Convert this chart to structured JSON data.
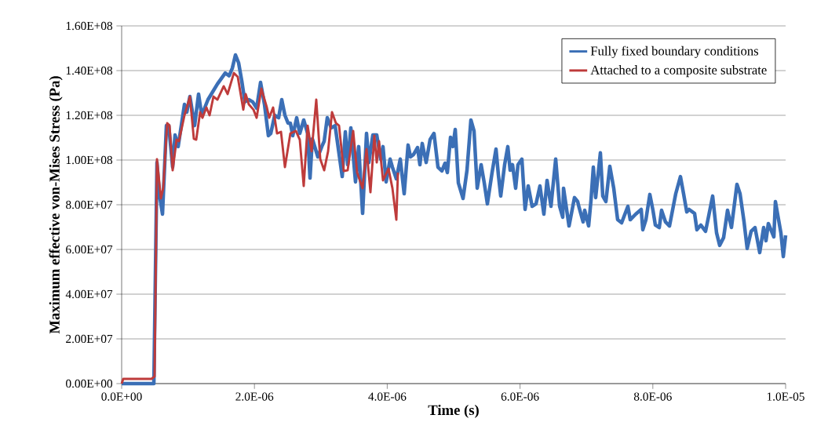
{
  "chart_data": {
    "type": "line",
    "xlabel": "Time (s)",
    "ylabel": "Maximum effective von-Mises Stress (Pa)",
    "xlim": [
      0,
      1e-05
    ],
    "ylim": [
      0,
      160000000.0
    ],
    "xticks": [
      {
        "value": 0,
        "label": "0.0E+00"
      },
      {
        "value": 2e-06,
        "label": "2.0E-06"
      },
      {
        "value": 4e-06,
        "label": "4.0E-06"
      },
      {
        "value": 6e-06,
        "label": "6.0E-06"
      },
      {
        "value": 8e-06,
        "label": "8.0E-06"
      },
      {
        "value": 1e-05,
        "label": "1.0E-05"
      }
    ],
    "yticks": [
      {
        "value": 0,
        "label": "0.00E+00"
      },
      {
        "value": 20000000.0,
        "label": "2.00E+07"
      },
      {
        "value": 40000000.0,
        "label": "4.00E+07"
      },
      {
        "value": 60000000.0,
        "label": "6.00E+07"
      },
      {
        "value": 80000000.0,
        "label": "8.00E+07"
      },
      {
        "value": 100000000.0,
        "label": "1.00E+08"
      },
      {
        "value": 120000000.0,
        "label": "1.20E+08"
      },
      {
        "value": 140000000.0,
        "label": "1.40E+08"
      },
      {
        "value": 160000000.0,
        "label": "1.60E+08"
      }
    ],
    "grid": "y",
    "legend": "top right",
    "line_style": "solid",
    "series": [
      {
        "name": "Fully fixed boundary conditions",
        "color": "#3b6fb6",
        "x": [
          0,
          4.85e-07,
          5.32e-07,
          5.67e-07,
          6.15e-07,
          6.74e-07,
          7.09e-07,
          7.68e-07,
          8.04e-07,
          8.51e-07,
          9.46e-07,
          9.81e-07,
          1.028e-06,
          1.099e-06,
          1.158e-06,
          1.206e-06,
          1.3e-06,
          1.442e-06,
          1.56e-06,
          1.619e-06,
          1.667e-06,
          1.714e-06,
          1.761e-06,
          1.809e-06,
          1.856e-06,
          1.915e-06,
          1.974e-06,
          2.033e-06,
          2.092e-06,
          2.151e-06,
          2.21e-06,
          2.246e-06,
          2.305e-06,
          2.364e-06,
          2.411e-06,
          2.459e-06,
          2.506e-06,
          2.541e-06,
          2.577e-06,
          2.636e-06,
          2.683e-06,
          2.742e-06,
          2.801e-06,
          2.837e-06,
          2.872e-06,
          2.955e-06,
          3.014e-06,
          3.05e-06,
          3.097e-06,
          3.156e-06,
          3.215e-06,
          3.322e-06,
          3.369e-06,
          3.404e-06,
          3.452e-06,
          3.522e-06,
          3.57e-06,
          3.629e-06,
          3.688e-06,
          3.723e-06,
          3.783e-06,
          3.842e-06,
          3.901e-06,
          3.936e-06,
          3.983e-06,
          4.043e-06,
          4.078e-06,
          4.137e-06,
          4.196e-06,
          4.255e-06,
          4.314e-06,
          4.35e-06,
          4.397e-06,
          4.456e-06,
          4.492e-06,
          4.527e-06,
          4.586e-06,
          4.645e-06,
          4.704e-06,
          4.764e-06,
          4.823e-06,
          4.87e-06,
          4.905e-06,
          4.953e-06,
          4.988e-06,
          5.024e-06,
          5.071e-06,
          5.142e-06,
          5.201e-06,
          5.26e-06,
          5.307e-06,
          5.355e-06,
          5.414e-06,
          5.461e-06,
          5.508e-06,
          5.579e-06,
          5.638e-06,
          5.674e-06,
          5.709e-06,
          5.768e-06,
          5.816e-06,
          5.851e-06,
          5.887e-06,
          5.934e-06,
          5.969e-06,
          6.028e-06,
          6.076e-06,
          6.123e-06,
          6.182e-06,
          6.241e-06,
          6.3e-06,
          6.359e-06,
          6.407e-06,
          6.466e-06,
          6.537e-06,
          6.596e-06,
          6.643e-06,
          6.655e-06,
          6.738e-06,
          6.82e-06,
          6.868e-06,
          6.891e-06,
          6.95e-06,
          6.974e-06,
          7.033e-06,
          7.069e-06,
          7.104e-06,
          7.139e-06,
          7.21e-06,
          7.246e-06,
          7.293e-06,
          7.352e-06,
          7.411e-06,
          7.47e-06,
          7.53e-06,
          7.624e-06,
          7.66e-06,
          7.742e-06,
          7.825e-06,
          7.849e-06,
          7.896e-06,
          7.955e-06,
          8.002e-06,
          8.038e-06,
          8.097e-06,
          8.132e-06,
          8.191e-06,
          8.251e-06,
          8.345e-06,
          8.416e-06,
          8.463e-06,
          8.511e-06,
          8.546e-06,
          8.629e-06,
          8.664e-06,
          8.723e-06,
          8.794e-06,
          8.842e-06,
          8.901e-06,
          8.96e-06,
          9.007e-06,
          9.066e-06,
          9.125e-06,
          9.184e-06,
          9.267e-06,
          9.314e-06,
          9.374e-06,
          9.421e-06,
          9.48e-06,
          9.539e-06,
          9.61e-06,
          9.669e-06,
          9.704e-06,
          9.74e-06,
          9.823e-06,
          9.846e-06,
          9.894e-06,
          9.929e-06,
          9.965e-06,
          1e-05
        ],
        "values": [
          0,
          0,
          98900000.0,
          84900000.0,
          75800000.0,
          115400000.0,
          115400000.0,
          96800000.0,
          111200000.0,
          106000000.0,
          124900000.0,
          121400000.0,
          128400000.0,
          115400000.0,
          129500000.0,
          120000000.0,
          127000000.0,
          134000000.0,
          138900000.0,
          137700000.0,
          141100000.0,
          147000000.0,
          143500000.0,
          135400000.0,
          126000000.0,
          127000000.0,
          126000000.0,
          123200000.0,
          134700000.0,
          124900000.0,
          110900000.0,
          111900000.0,
          120000000.0,
          118900000.0,
          127000000.0,
          120000000.0,
          116500000.0,
          116500000.0,
          110900000.0,
          118900000.0,
          111900000.0,
          117900000.0,
          111900000.0,
          91900000.0,
          109500000.0,
          101400000.0,
          106000000.0,
          108400000.0,
          118900000.0,
          114400000.0,
          115400000.0,
          92600000.0,
          112600000.0,
          97900000.0,
          114400000.0,
          90200000.0,
          106000000.0,
          76100000.0,
          111900000.0,
          98900000.0,
          111200000.0,
          111200000.0,
          100400000.0,
          106000000.0,
          90200000.0,
          100400000.0,
          96800000.0,
          91600000.0,
          100400000.0,
          84900000.0,
          106700000.0,
          101400000.0,
          102500000.0,
          105600000.0,
          97900000.0,
          107400000.0,
          98900000.0,
          109100000.0,
          111900000.0,
          96800000.0,
          95100000.0,
          98600000.0,
          94400000.0,
          110200000.0,
          106000000.0,
          113700000.0,
          89800000.0,
          82800000.0,
          95400000.0,
          117900000.0,
          113000000.0,
          87400000.0,
          97900000.0,
          89800000.0,
          80400000.0,
          94400000.0,
          104900000.0,
          93300000.0,
          83900000.0,
          97900000.0,
          106000000.0,
          95400000.0,
          97900000.0,
          87400000.0,
          97900000.0,
          100400000.0,
          77900000.0,
          88400000.0,
          79300000.0,
          80400000.0,
          88400000.0,
          75800000.0,
          90900000.0,
          79300000.0,
          100400000.0,
          79300000.0,
          74400000.0,
          87400000.0,
          70500000.0,
          83200000.0,
          81400000.0,
          78600000.0,
          72300000.0,
          77500000.0,
          70500000.0,
          82100000.0,
          96800000.0,
          83200000.0,
          103200000.0,
          83900000.0,
          81400000.0,
          97200000.0,
          87400000.0,
          73300000.0,
          71900000.0,
          79300000.0,
          73300000.0,
          75800000.0,
          77900000.0,
          68800000.0,
          73300000.0,
          84600000.0,
          77500000.0,
          70900000.0,
          69800000.0,
          77500000.0,
          72300000.0,
          70500000.0,
          84900000.0,
          92600000.0,
          84900000.0,
          76800000.0,
          77900000.0,
          76100000.0,
          68800000.0,
          70900000.0,
          68100000.0,
          75100000.0,
          83900000.0,
          67400000.0,
          61800000.0,
          65300000.0,
          77500000.0,
          69800000.0,
          89100000.0,
          84900000.0,
          72300000.0,
          60400000.0,
          68100000.0,
          69800000.0,
          58600000.0,
          69800000.0,
          63900000.0,
          71600000.0,
          65600000.0,
          81400000.0,
          73300000.0,
          67400000.0,
          56800000.0,
          66300000.0
        ]
      },
      {
        "name": "Attached to a composite substrate",
        "color": "#be3b3b",
        "x": [
          0,
          2.4e-08,
          4.49e-07,
          4.96e-07,
          5.32e-07,
          5.91e-07,
          6.26e-07,
          6.86e-07,
          7.21e-07,
          7.68e-07,
          8.27e-07,
          8.63e-07,
          9.46e-07,
          1.028e-06,
          1.087e-06,
          1.123e-06,
          1.182e-06,
          1.217e-06,
          1.277e-06,
          1.324e-06,
          1.383e-06,
          1.442e-06,
          1.537e-06,
          1.596e-06,
          1.69e-06,
          1.749e-06,
          1.832e-06,
          1.868e-06,
          1.915e-06,
          1.986e-06,
          2.033e-06,
          2.104e-06,
          2.187e-06,
          2.222e-06,
          2.281e-06,
          2.34e-06,
          2.4e-06,
          2.459e-06,
          2.541e-06,
          2.624e-06,
          2.683e-06,
          2.742e-06,
          2.801e-06,
          2.861e-06,
          2.931e-06,
          2.991e-06,
          3.05e-06,
          3.109e-06,
          3.168e-06,
          3.227e-06,
          3.274e-06,
          3.345e-06,
          3.404e-06,
          3.487e-06,
          3.546e-06,
          3.629e-06,
          3.688e-06,
          3.747e-06,
          3.806e-06,
          3.842e-06,
          3.877e-06,
          3.936e-06,
          4.019e-06,
          4.078e-06,
          4.137e-06,
          4.161e-06
        ],
        "values": [
          0,
          2100000.0,
          2100000.0,
          3200000.0,
          100400000.0,
          82800000.0,
          87400000.0,
          116500000.0,
          115400000.0,
          95400000.0,
          109100000.0,
          108400000.0,
          120000000.0,
          128400000.0,
          109500000.0,
          109100000.0,
          121400000.0,
          118900000.0,
          123500000.0,
          120000000.0,
          128400000.0,
          127000000.0,
          133000000.0,
          129500000.0,
          138900000.0,
          137200000.0,
          122500000.0,
          129500000.0,
          124900000.0,
          122500000.0,
          118900000.0,
          131900000.0,
          123500000.0,
          118900000.0,
          123500000.0,
          111900000.0,
          112600000.0,
          96800000.0,
          111900000.0,
          113000000.0,
          109100000.0,
          88400000.0,
          115400000.0,
          103900000.0,
          127000000.0,
          100400000.0,
          95400000.0,
          103900000.0,
          121400000.0,
          116500000.0,
          115400000.0,
          95100000.0,
          95400000.0,
          113000000.0,
          94400000.0,
          87400000.0,
          104900000.0,
          85600000.0,
          110900000.0,
          98900000.0,
          108400000.0,
          90900000.0,
          96100000.0,
          87400000.0,
          73300000.0,
          94400000.0
        ]
      }
    ]
  }
}
